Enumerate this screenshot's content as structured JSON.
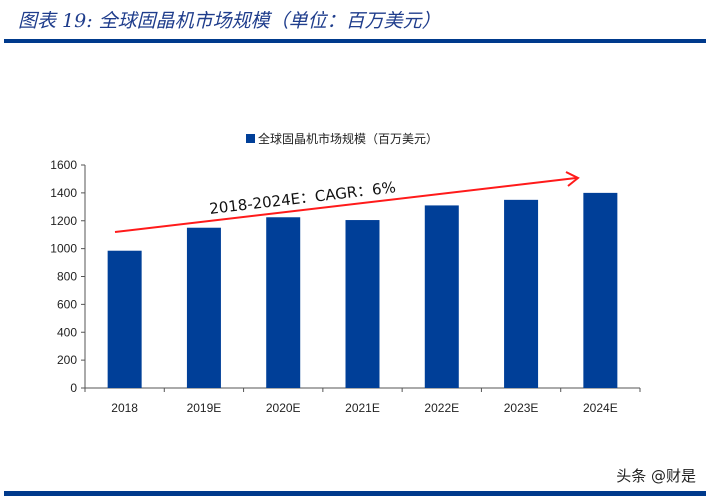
{
  "header": {
    "title": "图表 19:  全球固晶机市场规模（单位：百万美元）"
  },
  "watermark": "头条 @财是",
  "colors": {
    "bar": "#003f98",
    "arrow": "#ff1a1a",
    "rule": "#003a8c"
  },
  "chart_data": {
    "type": "bar",
    "categories": [
      "2018",
      "2019E",
      "2020E",
      "2021E",
      "2022E",
      "2023E",
      "2024E"
    ],
    "series": [
      {
        "name": "全球固晶机市场规模（百万美元）",
        "values": [
          985,
          1150,
          1225,
          1205,
          1310,
          1350,
          1400
        ]
      }
    ],
    "ylim": [
      0,
      1600
    ],
    "yticks": [
      0,
      200,
      400,
      600,
      800,
      1000,
      1200,
      1400,
      1600
    ],
    "legend": "top",
    "grid": false,
    "annotation": "2018-2024E：CAGR：6%"
  }
}
